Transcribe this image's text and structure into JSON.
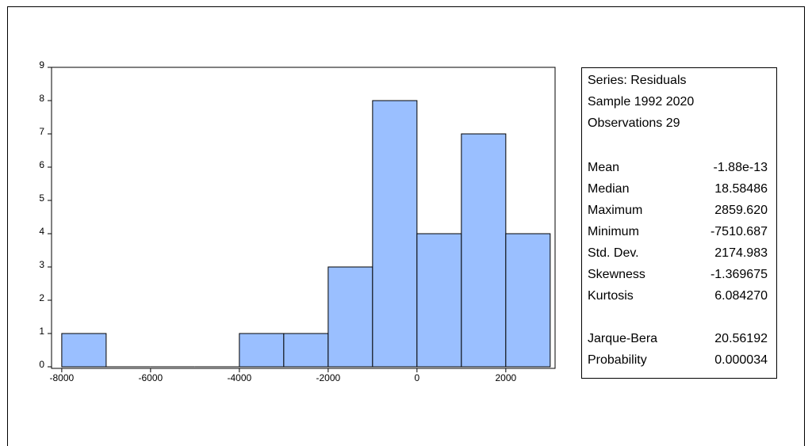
{
  "chart_data": {
    "type": "histogram",
    "bins": [
      -8000,
      -7000,
      -6000,
      -5000,
      -4000,
      -3000,
      -2000,
      -1000,
      0,
      1000,
      2000,
      3000
    ],
    "counts": [
      1,
      0,
      0,
      0,
      1,
      1,
      3,
      8,
      4,
      7,
      4
    ],
    "color": "#9abfff",
    "xlim": [
      -8230,
      3110
    ],
    "xticks": [
      -8000,
      -6000,
      -4000,
      -2000,
      0,
      2000
    ],
    "ylim": [
      0,
      9
    ],
    "yticks": [
      0,
      1,
      2,
      3,
      4,
      5,
      6,
      7,
      8,
      9
    ],
    "stats_box": {
      "header": [
        "Series: Residuals",
        "Sample 1992 2020",
        "Observations 29"
      ],
      "stats": [
        [
          "Mean",
          "-1.88e-13"
        ],
        [
          "Median",
          "18.58486"
        ],
        [
          "Maximum",
          "2859.620"
        ],
        [
          "Minimum",
          "-7510.687"
        ],
        [
          "Std. Dev.",
          "2174.983"
        ],
        [
          "Skewness",
          "-1.369675"
        ],
        [
          "Kurtosis",
          "6.084270"
        ]
      ],
      "tests": [
        [
          "Jarque-Bera",
          "20.56192"
        ],
        [
          "Probability",
          "0.000034"
        ]
      ]
    }
  }
}
